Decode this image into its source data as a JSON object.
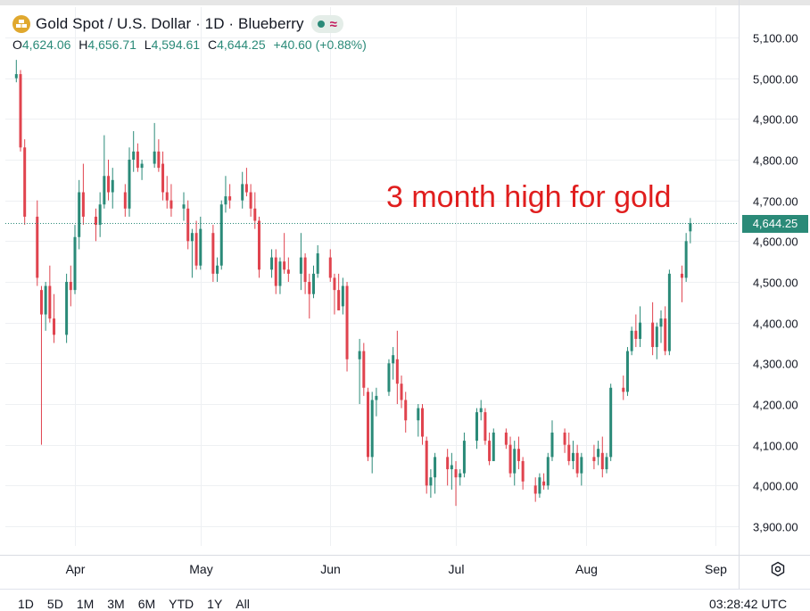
{
  "header": {
    "title": "Gold Spot / U.S. Dollar · 1D · Blueberry",
    "symbol_icon": "gold-bars-icon",
    "status_icons": [
      "market-open-dot-icon",
      "wave-icon"
    ],
    "ohlc": {
      "o_label": "O",
      "o_value": "4,624.06",
      "h_label": "H",
      "h_value": "4,656.71",
      "l_label": "L",
      "l_value": "4,594.61",
      "c_label": "C",
      "c_value": "4,644.25",
      "change": "+40.60 (+0.88%)"
    }
  },
  "annotation": "3 month high for gold",
  "price_tag": "4,644.25",
  "colors": {
    "up": "#2a8a78",
    "down": "#e0434e",
    "annotation": "#e01e1e",
    "grid": "#eef0f3"
  },
  "range_buttons": [
    "1D",
    "5D",
    "1M",
    "3M",
    "6M",
    "YTD",
    "1Y",
    "All"
  ],
  "time": "03:28:42 UTC",
  "chart_data": {
    "type": "candlestick",
    "ylim": [
      3850,
      5150
    ],
    "y_tick_labels": [
      "5,100.00",
      "5,000.00",
      "4,900.00",
      "4,800.00",
      "4,700.00",
      "4,600.00",
      "4,500.00",
      "4,400.00",
      "4,300.00",
      "4,200.00",
      "4,100.00",
      "4,000.00",
      "3,900.00"
    ],
    "y_ticks": [
      5100,
      5000,
      4900,
      4800,
      4700,
      4600,
      4500,
      4400,
      4300,
      4200,
      4100,
      4000,
      3900
    ],
    "x_tick_labels": [
      "Apr",
      "May",
      "Jun",
      "Jul",
      "Aug",
      "Sep"
    ],
    "x_ticks": [
      "2026-04-01",
      "2026-05-01",
      "2026-06-01",
      "2026-07-01",
      "2026-08-01",
      "2026-09-01"
    ],
    "last_price": 4644.25,
    "candles": [
      {
        "date": "2026-03-18",
        "o": 5000,
        "h": 5045,
        "l": 4990,
        "c": 5010
      },
      {
        "date": "2026-03-19",
        "o": 5010,
        "h": 5020,
        "l": 4820,
        "c": 4830
      },
      {
        "date": "2026-03-20",
        "o": 4830,
        "h": 4850,
        "l": 4640,
        "c": 4660
      },
      {
        "date": "2026-03-23",
        "o": 4660,
        "h": 4700,
        "l": 4490,
        "c": 4510
      },
      {
        "date": "2026-03-24",
        "o": 4480,
        "h": 4490,
        "l": 4100,
        "c": 4420
      },
      {
        "date": "2026-03-25",
        "o": 4420,
        "h": 4500,
        "l": 4380,
        "c": 4490
      },
      {
        "date": "2026-03-26",
        "o": 4490,
        "h": 4540,
        "l": 4400,
        "c": 4410
      },
      {
        "date": "2026-03-27",
        "o": 4410,
        "h": 4470,
        "l": 4350,
        "c": 4370
      },
      {
        "date": "2026-03-30",
        "o": 4370,
        "h": 4520,
        "l": 4350,
        "c": 4500
      },
      {
        "date": "2026-03-31",
        "o": 4500,
        "h": 4540,
        "l": 4440,
        "c": 4480
      },
      {
        "date": "2026-04-01",
        "o": 4480,
        "h": 4640,
        "l": 4470,
        "c": 4610
      },
      {
        "date": "2026-04-02",
        "o": 4610,
        "h": 4750,
        "l": 4580,
        "c": 4720
      },
      {
        "date": "2026-04-03",
        "o": 4720,
        "h": 4790,
        "l": 4640,
        "c": 4660
      },
      {
        "date": "2026-04-06",
        "o": 4660,
        "h": 4680,
        "l": 4600,
        "c": 4640
      },
      {
        "date": "2026-04-07",
        "o": 4640,
        "h": 4720,
        "l": 4610,
        "c": 4690
      },
      {
        "date": "2026-04-08",
        "o": 4690,
        "h": 4860,
        "l": 4680,
        "c": 4760
      },
      {
        "date": "2026-04-09",
        "o": 4760,
        "h": 4800,
        "l": 4700,
        "c": 4720
      },
      {
        "date": "2026-04-10",
        "o": 4720,
        "h": 4780,
        "l": 4680,
        "c": 4750
      },
      {
        "date": "2026-04-13",
        "o": 4720,
        "h": 4740,
        "l": 4660,
        "c": 4680
      },
      {
        "date": "2026-04-14",
        "o": 4680,
        "h": 4830,
        "l": 4660,
        "c": 4800
      },
      {
        "date": "2026-04-15",
        "o": 4800,
        "h": 4870,
        "l": 4770,
        "c": 4820
      },
      {
        "date": "2026-04-16",
        "o": 4820,
        "h": 4840,
        "l": 4770,
        "c": 4780
      },
      {
        "date": "2026-04-17",
        "o": 4780,
        "h": 4800,
        "l": 4750,
        "c": 4790
      },
      {
        "date": "2026-04-20",
        "o": 4790,
        "h": 4890,
        "l": 4780,
        "c": 4820
      },
      {
        "date": "2026-04-21",
        "o": 4820,
        "h": 4850,
        "l": 4770,
        "c": 4780
      },
      {
        "date": "2026-04-22",
        "o": 4790,
        "h": 4820,
        "l": 4700,
        "c": 4720
      },
      {
        "date": "2026-04-23",
        "o": 4720,
        "h": 4760,
        "l": 4680,
        "c": 4700
      },
      {
        "date": "2026-04-24",
        "o": 4700,
        "h": 4740,
        "l": 4660,
        "c": 4680
      },
      {
        "date": "2026-04-27",
        "o": 4680,
        "h": 4720,
        "l": 4650,
        "c": 4690
      },
      {
        "date": "2026-04-28",
        "o": 4680,
        "h": 4700,
        "l": 4580,
        "c": 4600
      },
      {
        "date": "2026-04-29",
        "o": 4600,
        "h": 4630,
        "l": 4510,
        "c": 4620
      },
      {
        "date": "2026-04-30",
        "o": 4620,
        "h": 4650,
        "l": 4530,
        "c": 4540
      },
      {
        "date": "2026-05-01",
        "o": 4540,
        "h": 4660,
        "l": 4530,
        "c": 4630
      },
      {
        "date": "2026-05-04",
        "o": 4620,
        "h": 4640,
        "l": 4500,
        "c": 4520
      },
      {
        "date": "2026-05-05",
        "o": 4520,
        "h": 4560,
        "l": 4500,
        "c": 4540
      },
      {
        "date": "2026-05-06",
        "o": 4540,
        "h": 4700,
        "l": 4530,
        "c": 4690
      },
      {
        "date": "2026-05-07",
        "o": 4690,
        "h": 4760,
        "l": 4670,
        "c": 4710
      },
      {
        "date": "2026-05-08",
        "o": 4710,
        "h": 4740,
        "l": 4680,
        "c": 4700
      },
      {
        "date": "2026-05-11",
        "o": 4700,
        "h": 4770,
        "l": 4680,
        "c": 4740
      },
      {
        "date": "2026-05-12",
        "o": 4740,
        "h": 4780,
        "l": 4710,
        "c": 4720
      },
      {
        "date": "2026-05-13",
        "o": 4720,
        "h": 4740,
        "l": 4660,
        "c": 4680
      },
      {
        "date": "2026-05-14",
        "o": 4680,
        "h": 4720,
        "l": 4630,
        "c": 4650
      },
      {
        "date": "2026-05-15",
        "o": 4650,
        "h": 4660,
        "l": 4510,
        "c": 4530
      },
      {
        "date": "2026-05-18",
        "o": 4530,
        "h": 4580,
        "l": 4510,
        "c": 4560
      },
      {
        "date": "2026-05-19",
        "o": 4560,
        "h": 4580,
        "l": 4470,
        "c": 4490
      },
      {
        "date": "2026-05-20",
        "o": 4490,
        "h": 4560,
        "l": 4470,
        "c": 4550
      },
      {
        "date": "2026-05-21",
        "o": 4550,
        "h": 4620,
        "l": 4520,
        "c": 4530
      },
      {
        "date": "2026-05-22",
        "o": 4530,
        "h": 4560,
        "l": 4500,
        "c": 4520
      },
      {
        "date": "2026-05-25",
        "o": 4520,
        "h": 4620,
        "l": 4480,
        "c": 4560
      },
      {
        "date": "2026-05-26",
        "o": 4560,
        "h": 4570,
        "l": 4470,
        "c": 4500
      },
      {
        "date": "2026-05-27",
        "o": 4500,
        "h": 4520,
        "l": 4410,
        "c": 4470
      },
      {
        "date": "2026-05-28",
        "o": 4470,
        "h": 4540,
        "l": 4460,
        "c": 4520
      },
      {
        "date": "2026-05-29",
        "o": 4520,
        "h": 4590,
        "l": 4510,
        "c": 4570
      },
      {
        "date": "2026-06-01",
        "o": 4560,
        "h": 4580,
        "l": 4500,
        "c": 4510
      },
      {
        "date": "2026-06-02",
        "o": 4510,
        "h": 4520,
        "l": 4420,
        "c": 4480
      },
      {
        "date": "2026-06-03",
        "o": 4480,
        "h": 4520,
        "l": 4430,
        "c": 4430
      },
      {
        "date": "2026-06-04",
        "o": 4440,
        "h": 4510,
        "l": 4420,
        "c": 4490
      },
      {
        "date": "2026-06-05",
        "o": 4490,
        "h": 4500,
        "l": 4280,
        "c": 4310
      },
      {
        "date": "2026-06-08",
        "o": 4310,
        "h": 4360,
        "l": 4200,
        "c": 4330
      },
      {
        "date": "2026-06-09",
        "o": 4330,
        "h": 4350,
        "l": 4220,
        "c": 4240
      },
      {
        "date": "2026-06-10",
        "o": 4230,
        "h": 4240,
        "l": 4060,
        "c": 4070
      },
      {
        "date": "2026-06-11",
        "o": 4070,
        "h": 4230,
        "l": 4030,
        "c": 4210
      },
      {
        "date": "2026-06-12",
        "o": 4210,
        "h": 4240,
        "l": 4170,
        "c": 4220
      },
      {
        "date": "2026-06-15",
        "o": 4230,
        "h": 4310,
        "l": 4220,
        "c": 4300
      },
      {
        "date": "2026-06-16",
        "o": 4300,
        "h": 4340,
        "l": 4260,
        "c": 4320
      },
      {
        "date": "2026-06-17",
        "o": 4310,
        "h": 4380,
        "l": 4200,
        "c": 4250
      },
      {
        "date": "2026-06-18",
        "o": 4250,
        "h": 4270,
        "l": 4190,
        "c": 4210
      },
      {
        "date": "2026-06-19",
        "o": 4210,
        "h": 4230,
        "l": 4130,
        "c": 4160
      },
      {
        "date": "2026-06-22",
        "o": 4160,
        "h": 4200,
        "l": 4120,
        "c": 4190
      },
      {
        "date": "2026-06-23",
        "o": 4190,
        "h": 4200,
        "l": 4100,
        "c": 4120
      },
      {
        "date": "2026-06-24",
        "o": 4110,
        "h": 4120,
        "l": 3980,
        "c": 4000
      },
      {
        "date": "2026-06-25",
        "o": 4000,
        "h": 4040,
        "l": 3970,
        "c": 4020
      },
      {
        "date": "2026-06-26",
        "o": 4020,
        "h": 4080,
        "l": 3980,
        "c": 4070
      },
      {
        "date": "2026-06-29",
        "o": 4070,
        "h": 4090,
        "l": 4000,
        "c": 4040
      },
      {
        "date": "2026-06-30",
        "o": 4040,
        "h": 4080,
        "l": 3990,
        "c": 4050
      },
      {
        "date": "2026-07-01",
        "o": 4040,
        "h": 4060,
        "l": 3950,
        "c": 4020
      },
      {
        "date": "2026-07-02",
        "o": 4020,
        "h": 4040,
        "l": 4000,
        "c": 4030
      },
      {
        "date": "2026-07-03",
        "o": 4030,
        "h": 4130,
        "l": 4020,
        "c": 4110
      },
      {
        "date": "2026-07-06",
        "o": 4110,
        "h": 4190,
        "l": 4090,
        "c": 4180
      },
      {
        "date": "2026-07-07",
        "o": 4180,
        "h": 4210,
        "l": 4160,
        "c": 4190
      },
      {
        "date": "2026-07-08",
        "o": 4180,
        "h": 4190,
        "l": 4100,
        "c": 4110
      },
      {
        "date": "2026-07-09",
        "o": 4110,
        "h": 4130,
        "l": 4050,
        "c": 4060
      },
      {
        "date": "2026-07-10",
        "o": 4060,
        "h": 4140,
        "l": 4060,
        "c": 4130
      },
      {
        "date": "2026-07-13",
        "o": 4130,
        "h": 4140,
        "l": 4090,
        "c": 4100
      },
      {
        "date": "2026-07-14",
        "o": 4100,
        "h": 4120,
        "l": 4020,
        "c": 4030
      },
      {
        "date": "2026-07-15",
        "o": 4030,
        "h": 4110,
        "l": 4000,
        "c": 4090
      },
      {
        "date": "2026-07-16",
        "o": 4090,
        "h": 4120,
        "l": 4040,
        "c": 4060
      },
      {
        "date": "2026-07-17",
        "o": 4060,
        "h": 4070,
        "l": 3990,
        "c": 4010
      },
      {
        "date": "2026-07-20",
        "o": 4000,
        "h": 4020,
        "l": 3960,
        "c": 3980
      },
      {
        "date": "2026-07-21",
        "o": 3980,
        "h": 4030,
        "l": 3970,
        "c": 4020
      },
      {
        "date": "2026-07-22",
        "o": 4010,
        "h": 4030,
        "l": 3990,
        "c": 4000
      },
      {
        "date": "2026-07-23",
        "o": 4000,
        "h": 4080,
        "l": 3990,
        "c": 4070
      },
      {
        "date": "2026-07-24",
        "o": 4070,
        "h": 4160,
        "l": 4060,
        "c": 4130
      },
      {
        "date": "2026-07-27",
        "o": 4130,
        "h": 4140,
        "l": 4080,
        "c": 4100
      },
      {
        "date": "2026-07-28",
        "o": 4100,
        "h": 4130,
        "l": 4050,
        "c": 4060
      },
      {
        "date": "2026-07-29",
        "o": 4060,
        "h": 4110,
        "l": 4040,
        "c": 4080
      },
      {
        "date": "2026-07-30",
        "o": 4080,
        "h": 4100,
        "l": 4020,
        "c": 4030
      },
      {
        "date": "2026-07-31",
        "o": 4030,
        "h": 4080,
        "l": 4000,
        "c": 4070
      },
      {
        "date": "2026-08-03",
        "o": 4070,
        "h": 4100,
        "l": 4040,
        "c": 4060
      },
      {
        "date": "2026-08-04",
        "o": 4070,
        "h": 4110,
        "l": 4050,
        "c": 4090
      },
      {
        "date": "2026-08-05",
        "o": 4080,
        "h": 4120,
        "l": 4020,
        "c": 4040
      },
      {
        "date": "2026-08-06",
        "o": 4040,
        "h": 4080,
        "l": 4030,
        "c": 4070
      },
      {
        "date": "2026-08-07",
        "o": 4070,
        "h": 4250,
        "l": 4060,
        "c": 4240
      },
      {
        "date": "2026-08-10",
        "o": 4240,
        "h": 4270,
        "l": 4210,
        "c": 4230
      },
      {
        "date": "2026-08-11",
        "o": 4230,
        "h": 4340,
        "l": 4220,
        "c": 4330
      },
      {
        "date": "2026-08-12",
        "o": 4330,
        "h": 4390,
        "l": 4320,
        "c": 4380
      },
      {
        "date": "2026-08-13",
        "o": 4380,
        "h": 4420,
        "l": 4340,
        "c": 4360
      },
      {
        "date": "2026-08-14",
        "o": 4360,
        "h": 4440,
        "l": 4340,
        "c": 4400
      },
      {
        "date": "2026-08-17",
        "o": 4400,
        "h": 4450,
        "l": 4320,
        "c": 4340
      },
      {
        "date": "2026-08-18",
        "o": 4340,
        "h": 4400,
        "l": 4310,
        "c": 4390
      },
      {
        "date": "2026-08-19",
        "o": 4390,
        "h": 4430,
        "l": 4350,
        "c": 4410
      },
      {
        "date": "2026-08-20",
        "o": 4410,
        "h": 4440,
        "l": 4320,
        "c": 4330
      },
      {
        "date": "2026-08-21",
        "o": 4330,
        "h": 4530,
        "l": 4320,
        "c": 4520
      },
      {
        "date": "2026-08-24",
        "o": 4520,
        "h": 4540,
        "l": 4450,
        "c": 4510
      },
      {
        "date": "2026-08-25",
        "o": 4510,
        "h": 4620,
        "l": 4500,
        "c": 4600
      },
      {
        "date": "2026-08-26",
        "o": 4624.06,
        "h": 4656.71,
        "l": 4594.61,
        "c": 4644.25
      }
    ]
  }
}
